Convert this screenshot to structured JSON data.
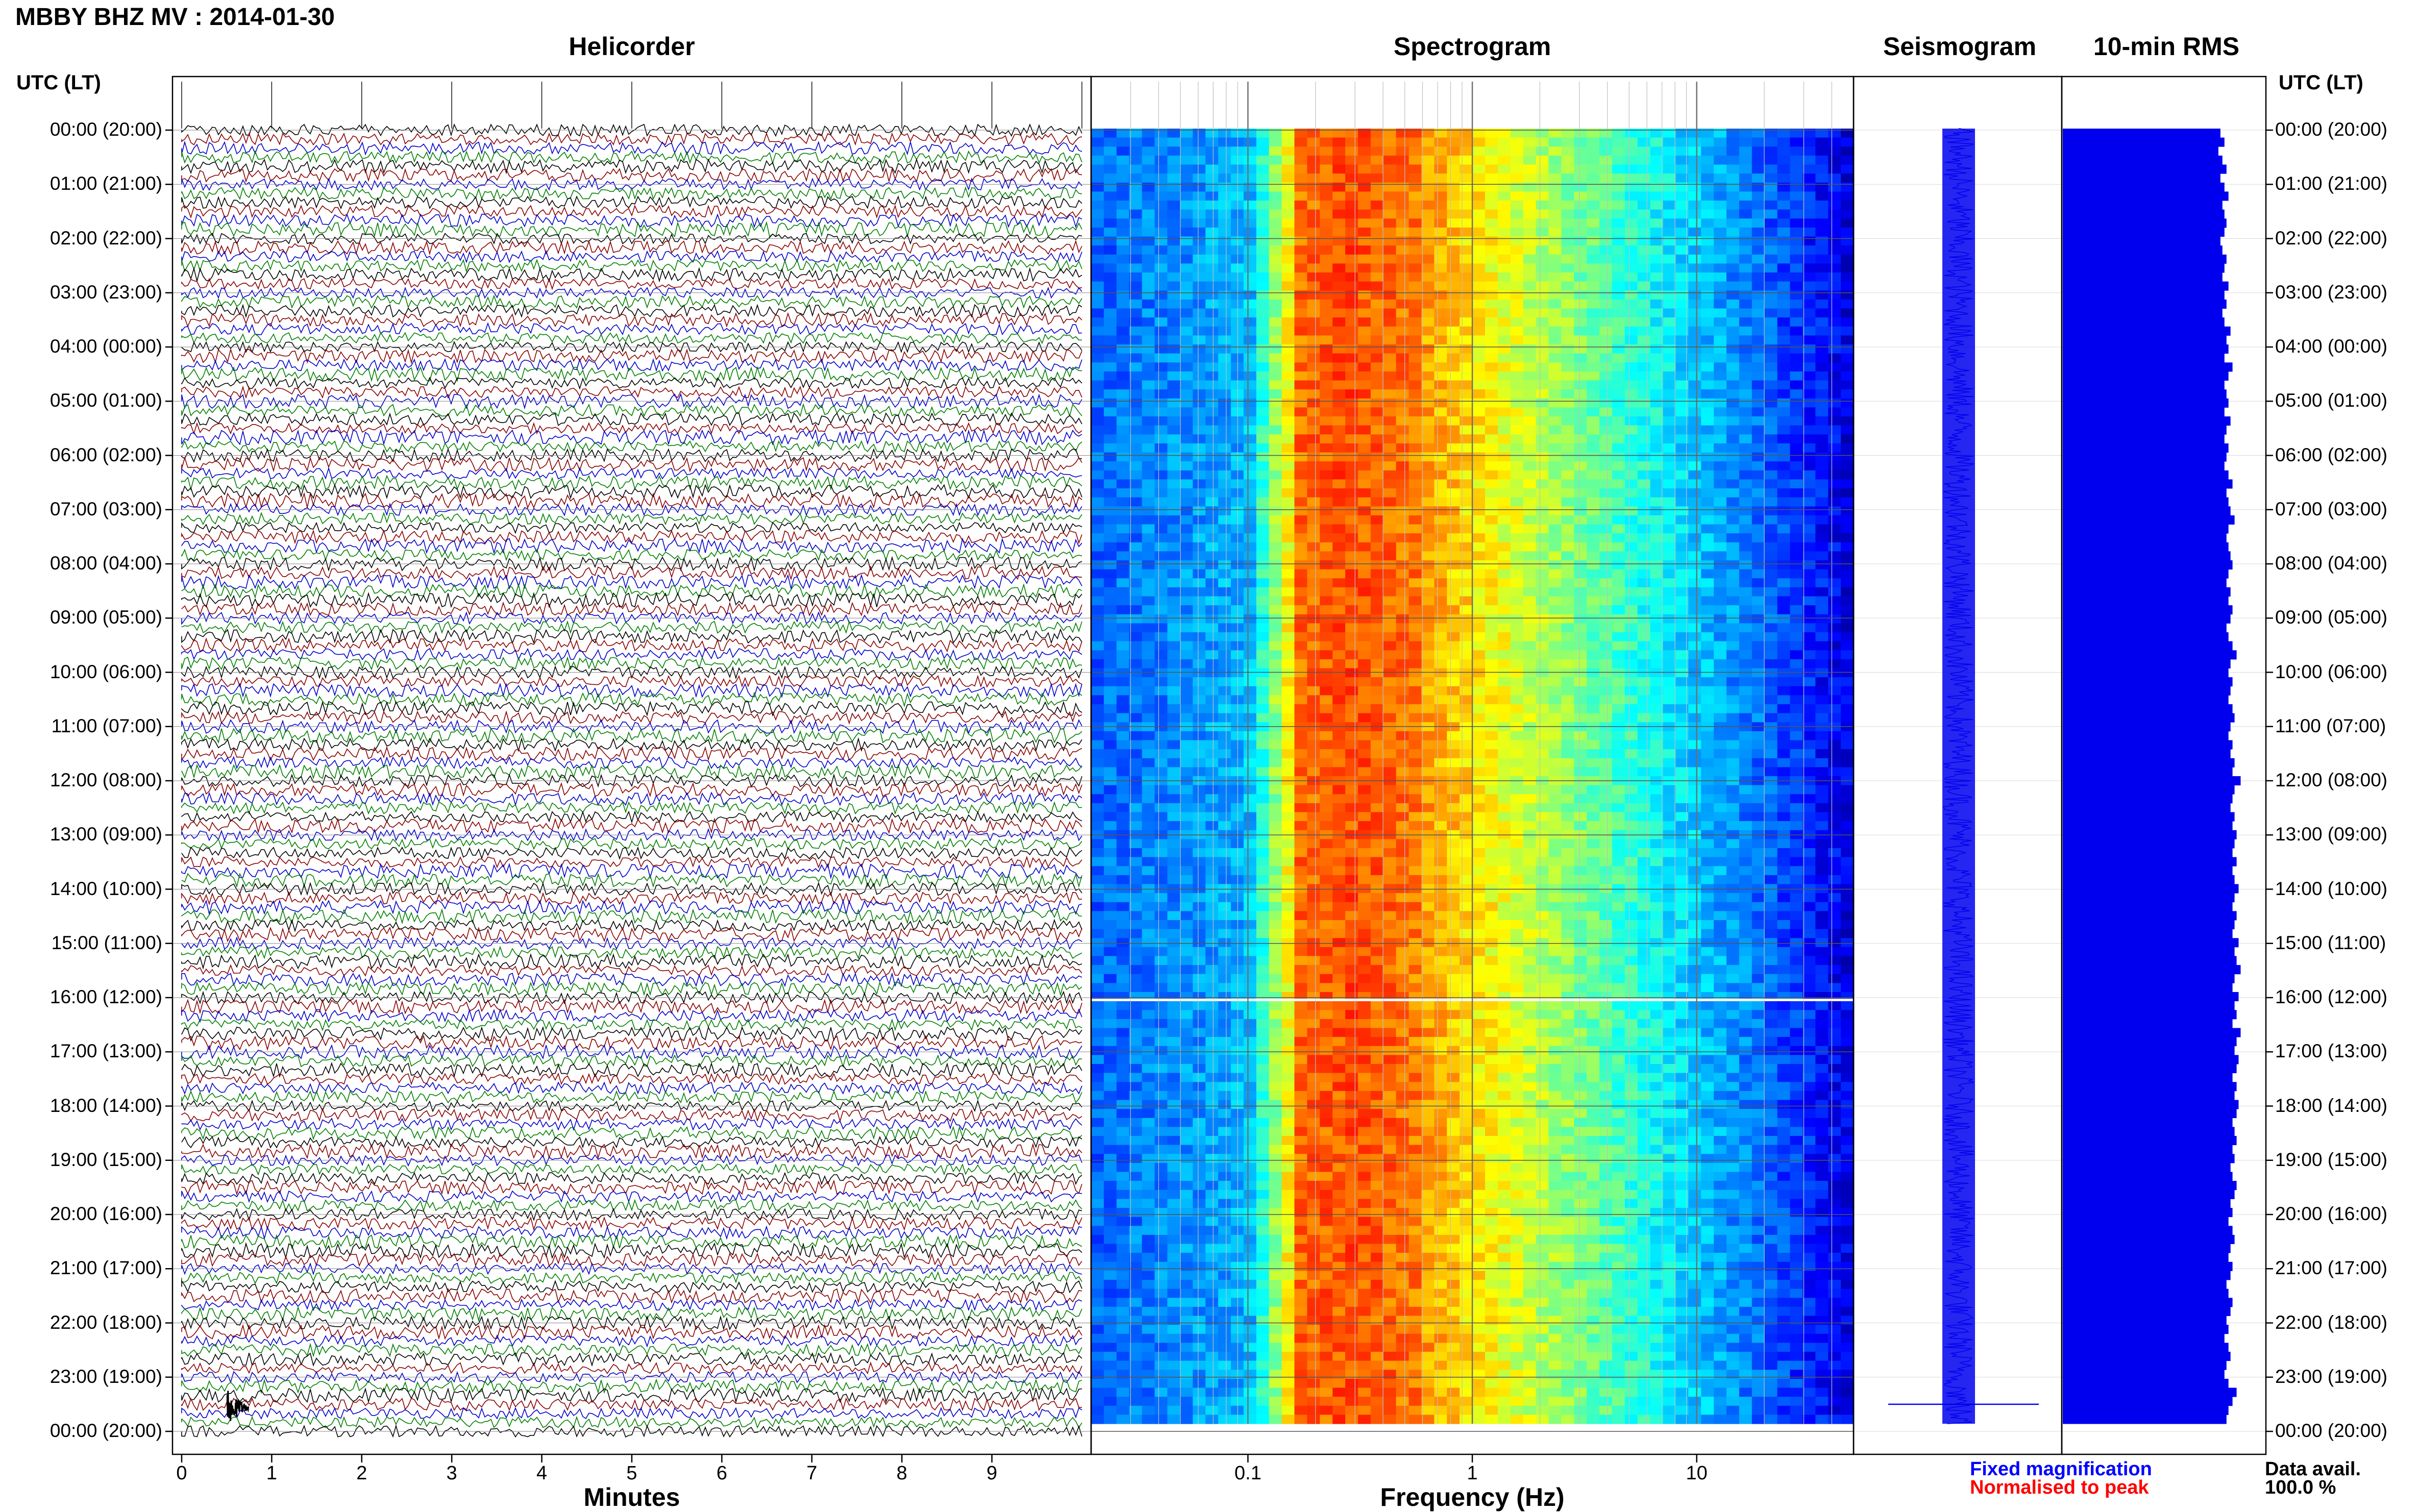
{
  "header": {
    "title": "MBBY BHZ MV : 2014-01-30",
    "utc_label_left": "UTC (LT)",
    "utc_label_right": "UTC (LT)"
  },
  "panels": {
    "helicorder": "Helicorder",
    "spectrogram": "Spectrogram",
    "seismogram": "Seismogram",
    "rms": "10-min RMS"
  },
  "axes": {
    "helicorder_xlabel": "Minutes",
    "spectrogram_xlabel": "Frequency (Hz)"
  },
  "legend": {
    "fixed": "Fixed magnification",
    "normalised": "Normalised to peak",
    "fixed_color": "#0000ff",
    "normalised_color": "#ff0000"
  },
  "data_avail": {
    "label": "Data avail.",
    "value": "100.0 %"
  },
  "colors": {
    "trace_colors": [
      "#000000",
      "#8b0000",
      "#0000cd",
      "#008000"
    ],
    "rms_fill": "#0000ee",
    "seismogram": "#0000ee"
  },
  "chart_data": [
    {
      "type": "line",
      "title": "Helicorder",
      "xlabel": "Minutes",
      "x_ticks": [
        "0",
        "1",
        "2",
        "3",
        "4",
        "5",
        "6",
        "7",
        "8",
        "9"
      ],
      "xlim": [
        0,
        10
      ],
      "y_labels": [
        "00:00 (20:00)",
        "01:00 (21:00)",
        "02:00 (22:00)",
        "03:00 (23:00)",
        "04:00 (00:00)",
        "05:00 (01:00)",
        "06:00 (02:00)",
        "07:00 (03:00)",
        "08:00 (04:00)",
        "09:00 (05:00)",
        "10:00 (06:00)",
        "11:00 (07:00)",
        "12:00 (08:00)",
        "13:00 (09:00)",
        "14:00 (10:00)",
        "15:00 (11:00)",
        "16:00 (12:00)",
        "17:00 (13:00)",
        "18:00 (14:00)",
        "19:00 (15:00)",
        "20:00 (16:00)",
        "21:00 (17:00)",
        "22:00 (18:00)",
        "23:00 (19:00)",
        "00:00 (20:00)"
      ],
      "traces_per_hour": 6
    },
    {
      "type": "heatmap",
      "title": "Spectrogram",
      "xlabel": "Frequency (Hz)",
      "x_scale": "log",
      "x_ticks": [
        "0.1",
        "1",
        "10"
      ],
      "xlim": [
        0.02,
        50
      ],
      "peak_band_hz": [
        0.15,
        0.6
      ],
      "colormap": "jet"
    },
    {
      "type": "line",
      "title": "Seismogram",
      "orientation": "vertical"
    },
    {
      "type": "bar",
      "title": "10-min RMS",
      "orientation": "horizontal",
      "bins": 144,
      "relative_values": [
        0.78,
        0.8,
        0.77,
        0.79,
        0.81,
        0.78,
        0.8,
        0.82,
        0.79,
        0.8,
        0.81,
        0.8,
        0.78,
        0.79,
        0.81,
        0.8,
        0.79,
        0.82,
        0.8,
        0.81,
        0.79,
        0.8,
        0.83,
        0.81,
        0.82,
        0.8,
        0.84,
        0.82,
        0.8,
        0.81,
        0.82,
        0.8,
        0.83,
        0.81,
        0.8,
        0.82,
        0.81,
        0.8,
        0.82,
        0.84,
        0.81,
        0.82,
        0.83,
        0.85,
        0.82,
        0.81,
        0.82,
        0.83,
        0.84,
        0.82,
        0.81,
        0.83,
        0.82,
        0.84,
        0.83,
        0.81,
        0.82,
        0.84,
        0.86,
        0.83,
        0.82,
        0.84,
        0.83,
        0.82,
        0.84,
        0.85,
        0.83,
        0.82,
        0.84,
        0.83,
        0.85,
        0.84,
        0.88,
        0.85,
        0.84,
        0.83,
        0.85,
        0.84,
        0.86,
        0.85,
        0.84,
        0.86,
        0.84,
        0.85,
        0.87,
        0.85,
        0.84,
        0.86,
        0.85,
        0.84,
        0.87,
        0.85,
        0.86,
        0.88,
        0.85,
        0.84,
        0.87,
        0.85,
        0.86,
        0.84,
        0.88,
        0.86,
        0.85,
        0.87,
        0.86,
        0.84,
        0.86,
        0.85,
        0.87,
        0.86,
        0.84,
        0.85,
        0.86,
        0.84,
        0.85,
        0.83,
        0.84,
        0.86,
        0.85,
        0.83,
        0.84,
        0.82,
        0.84,
        0.85,
        0.83,
        0.82,
        0.84,
        0.83,
        0.81,
        0.82,
        0.84,
        0.83,
        0.81,
        0.82,
        0.8,
        0.82,
        0.83,
        0.81,
        0.8,
        0.82,
        0.86,
        0.84,
        0.82,
        0.81
      ]
    }
  ]
}
